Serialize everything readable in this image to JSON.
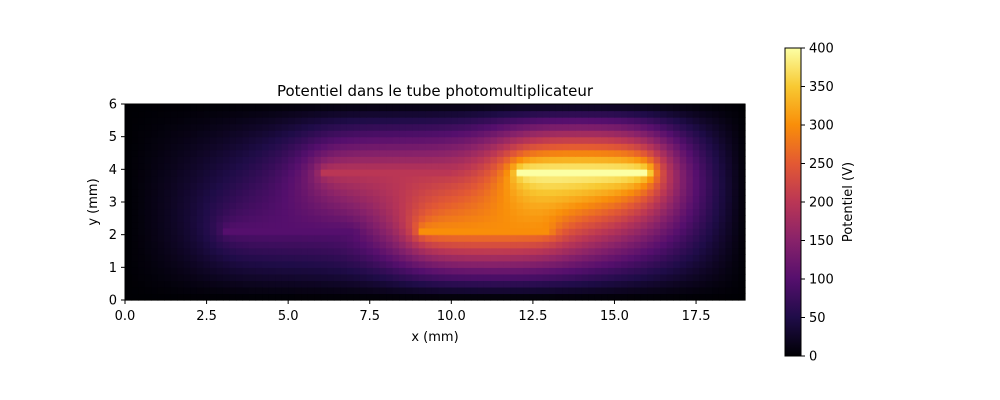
{
  "chart_data": {
    "type": "heatmap",
    "title": "Potentiel dans le tube photomultiplicateur",
    "xlabel": "x (mm)",
    "ylabel": "y (mm)",
    "xlim": [
      0,
      19
    ],
    "ylim": [
      0,
      6
    ],
    "x_ticks": [
      "0.0",
      "2.5",
      "5.0",
      "7.5",
      "10.0",
      "12.5",
      "15.0",
      "17.5"
    ],
    "y_ticks": [
      "0",
      "1",
      "2",
      "3",
      "4",
      "5",
      "6"
    ],
    "colormap": "inferno",
    "colorbar": {
      "label": "Potentiel (V)",
      "range": [
        0,
        400
      ],
      "ticks": [
        "0",
        "50",
        "100",
        "150",
        "200",
        "250",
        "300",
        "350",
        "400"
      ]
    },
    "boundary_potential": 0,
    "electrodes": [
      {
        "x": [
          3,
          7
        ],
        "y": 2.1,
        "potential": 100
      },
      {
        "x": [
          6,
          10
        ],
        "y": 3.9,
        "potential": 200
      },
      {
        "x": [
          9,
          13
        ],
        "y": 2.1,
        "potential": 300
      },
      {
        "x": [
          12,
          16
        ],
        "y": 3.9,
        "potential": 400
      }
    ]
  }
}
